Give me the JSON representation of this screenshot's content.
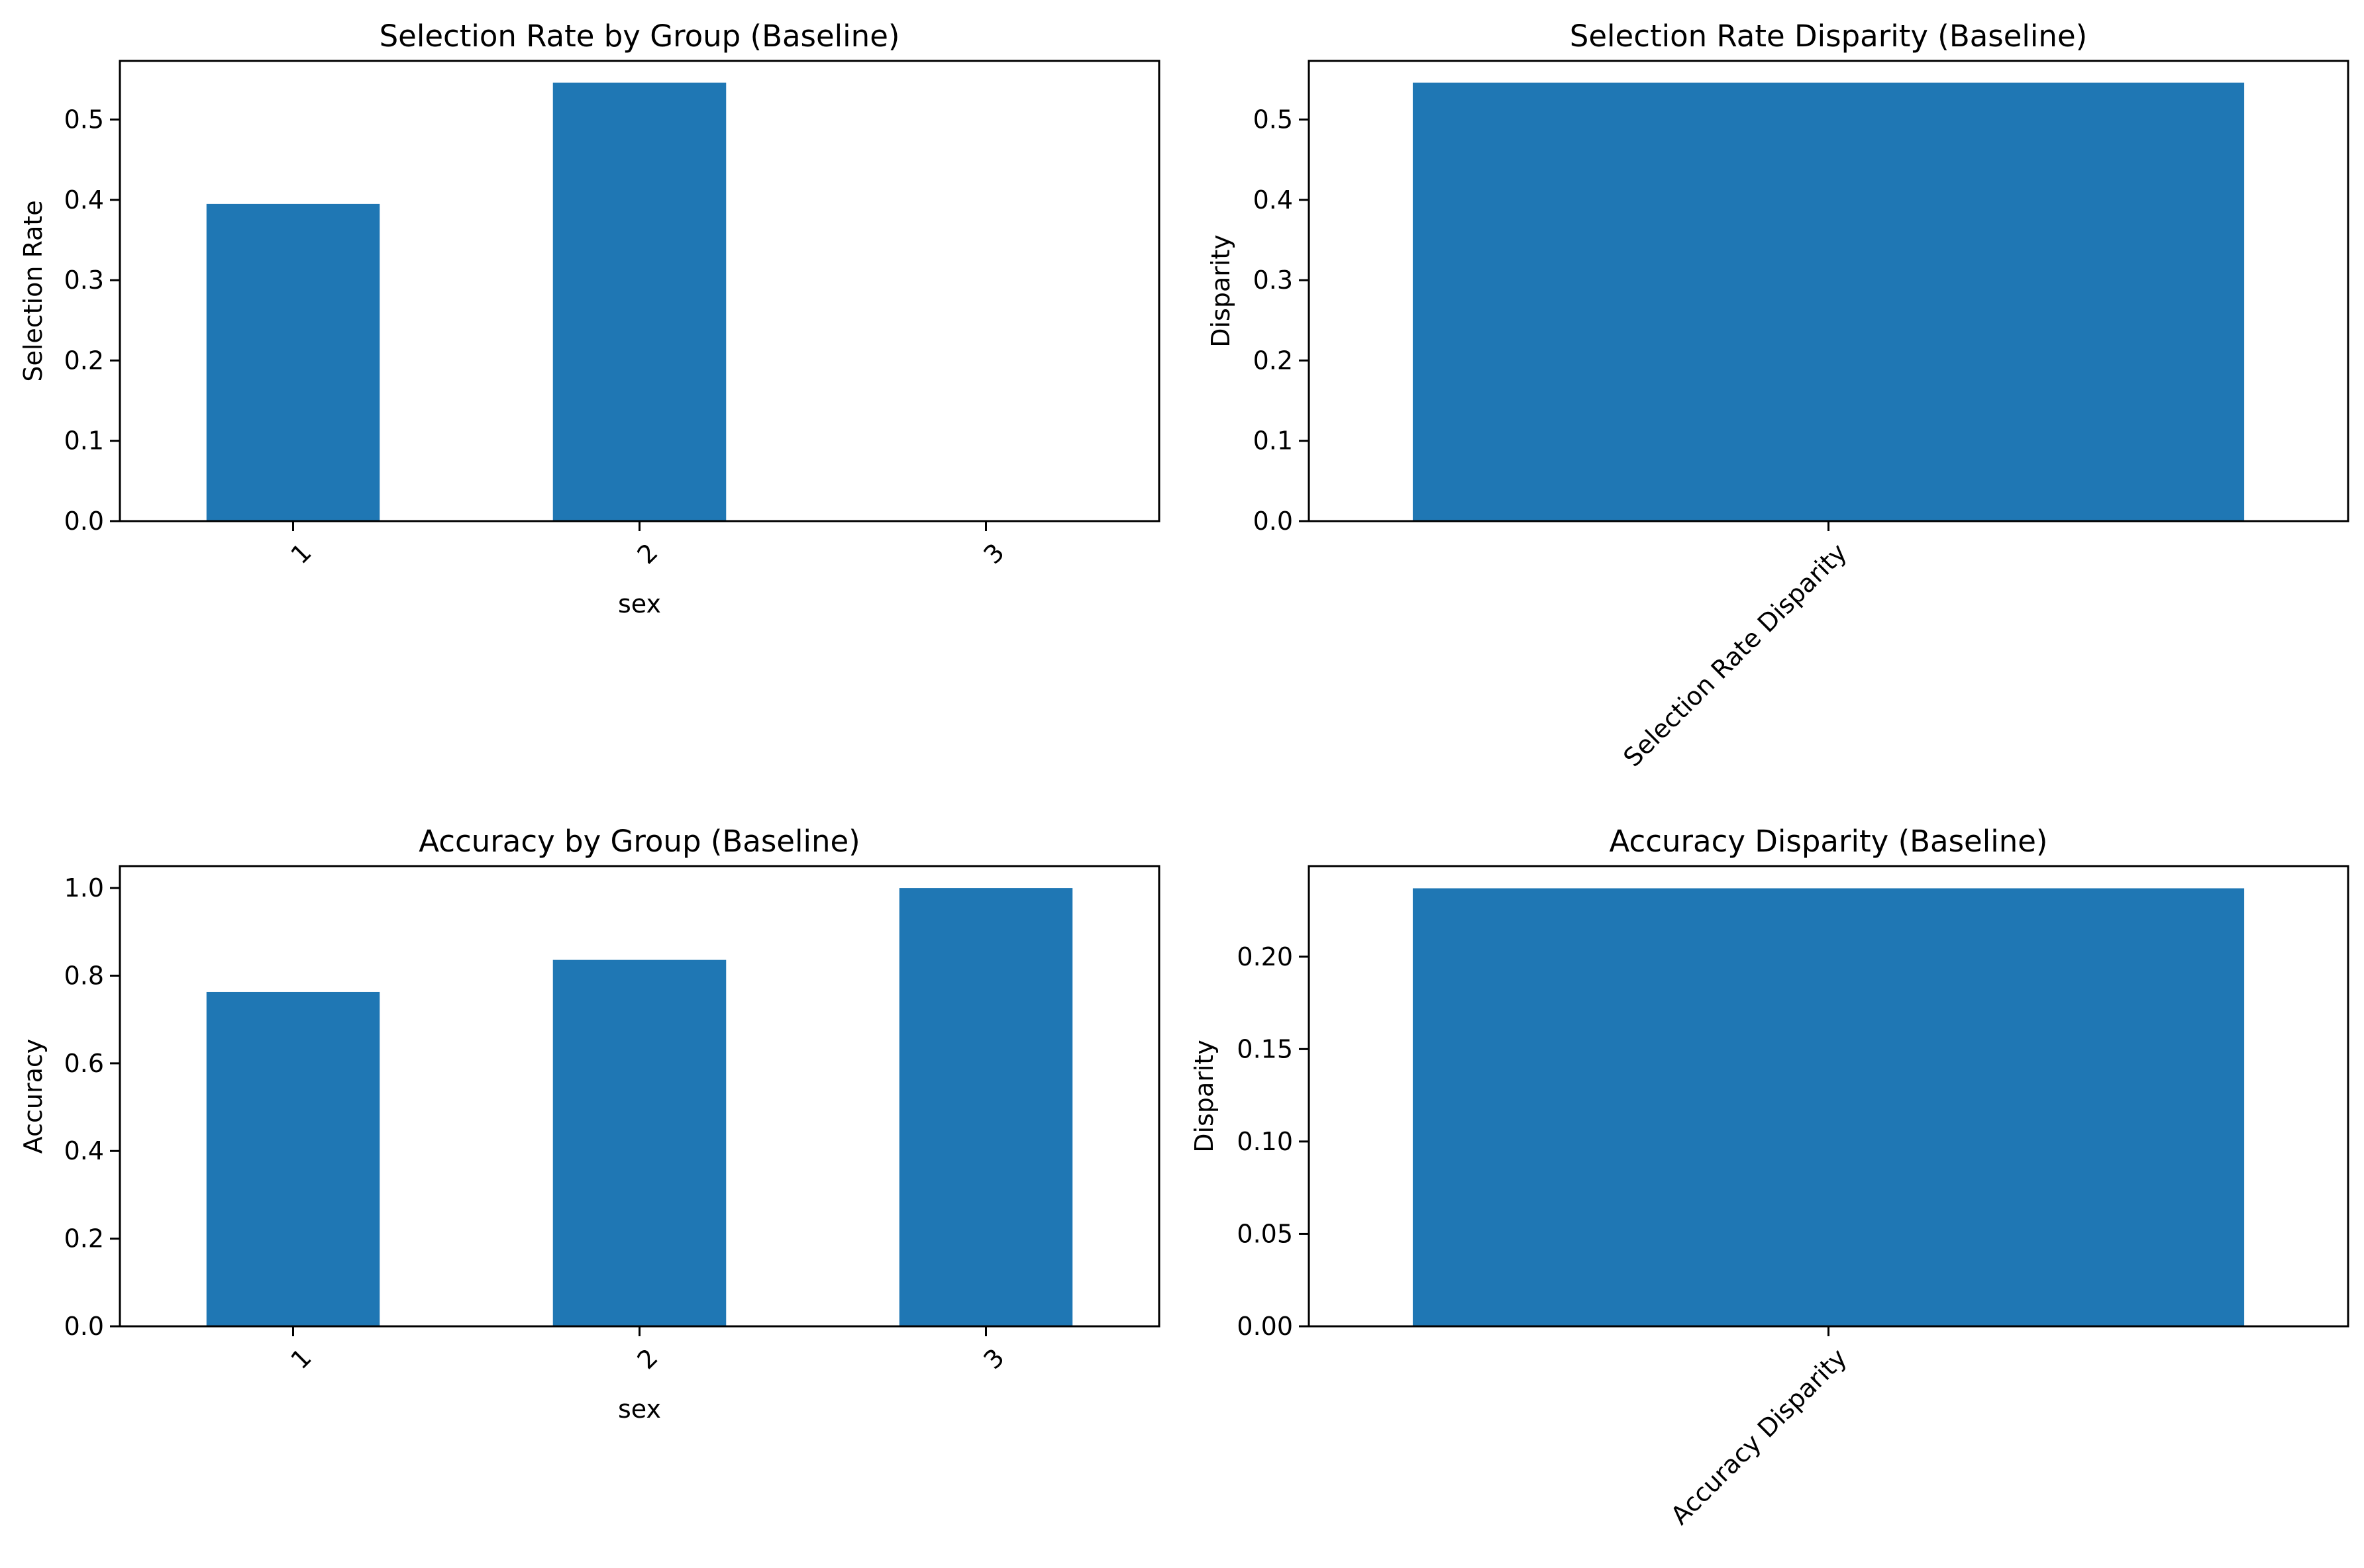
{
  "chart_data": [
    {
      "type": "bar",
      "title": "Selection Rate by Group (Baseline)",
      "xlabel": "sex",
      "ylabel": "Selection Rate",
      "categories": [
        "1",
        "2",
        "3"
      ],
      "values": [
        0.395,
        0.546,
        0.0
      ],
      "ylim": [
        0,
        0.573
      ],
      "yticks": [
        "0.0",
        "0.1",
        "0.2",
        "0.3",
        "0.4",
        "0.5"
      ],
      "tick_rotation": 45,
      "grid": false,
      "color": "#1f77b4"
    },
    {
      "type": "bar",
      "title": "Selection Rate Disparity (Baseline)",
      "xlabel": "",
      "ylabel": "Disparity",
      "categories": [
        "Selection Rate Disparity"
      ],
      "values": [
        0.546
      ],
      "ylim": [
        0,
        0.573
      ],
      "yticks": [
        "0.0",
        "0.1",
        "0.2",
        "0.3",
        "0.4",
        "0.5"
      ],
      "tick_rotation": 45,
      "grid": false,
      "color": "#1f77b4"
    },
    {
      "type": "bar",
      "title": "Accuracy by Group (Baseline)",
      "xlabel": "sex",
      "ylabel": "Accuracy",
      "categories": [
        "1",
        "2",
        "3"
      ],
      "values": [
        0.763,
        0.836,
        1.0
      ],
      "ylim": [
        0,
        1.05
      ],
      "yticks": [
        "0.0",
        "0.2",
        "0.4",
        "0.6",
        "0.8",
        "1.0"
      ],
      "tick_rotation": 45,
      "grid": false,
      "color": "#1f77b4"
    },
    {
      "type": "bar",
      "title": "Accuracy Disparity (Baseline)",
      "xlabel": "",
      "ylabel": "Disparity",
      "categories": [
        "Accuracy Disparity"
      ],
      "values": [
        0.237
      ],
      "ylim": [
        0,
        0.249
      ],
      "yticks": [
        "0.00",
        "0.05",
        "0.10",
        "0.15",
        "0.20"
      ],
      "tick_rotation": 45,
      "grid": false,
      "color": "#1f77b4"
    }
  ]
}
